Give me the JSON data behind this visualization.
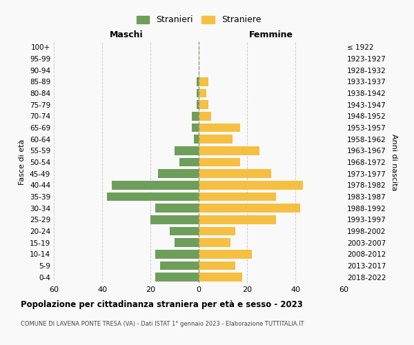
{
  "age_groups": [
    "0-4",
    "5-9",
    "10-14",
    "15-19",
    "20-24",
    "25-29",
    "30-34",
    "35-39",
    "40-44",
    "45-49",
    "50-54",
    "55-59",
    "60-64",
    "65-69",
    "70-74",
    "75-79",
    "80-84",
    "85-89",
    "90-94",
    "95-99",
    "100+"
  ],
  "birth_years": [
    "2018-2022",
    "2013-2017",
    "2008-2012",
    "2003-2007",
    "1998-2002",
    "1993-1997",
    "1988-1992",
    "1983-1987",
    "1978-1982",
    "1973-1977",
    "1968-1972",
    "1963-1967",
    "1958-1962",
    "1953-1957",
    "1948-1952",
    "1943-1947",
    "1938-1942",
    "1933-1937",
    "1928-1932",
    "1923-1927",
    "≤ 1922"
  ],
  "males": [
    18,
    16,
    18,
    10,
    12,
    20,
    18,
    38,
    36,
    17,
    8,
    10,
    2,
    3,
    3,
    1,
    1,
    1,
    0,
    0,
    0
  ],
  "females": [
    18,
    15,
    22,
    13,
    15,
    32,
    42,
    32,
    43,
    30,
    17,
    25,
    14,
    17,
    5,
    4,
    3,
    4,
    0,
    0,
    0
  ],
  "male_color": "#6d9e5a",
  "female_color": "#f5bf42",
  "title": "Popolazione per cittadinanza straniera per età e sesso - 2023",
  "subtitle": "COMUNE DI LAVENA PONTE TRESA (VA) - Dati ISTAT 1° gennaio 2023 - Elaborazione TUTTITALIA.IT",
  "xlabel_left": "Maschi",
  "xlabel_right": "Femmine",
  "ylabel_left": "Fasce di età",
  "ylabel_right": "Anni di nascita",
  "legend_males": "Stranieri",
  "legend_females": "Straniere",
  "xlim": 60,
  "background_color": "#f9f9f9",
  "grid_color": "#cccccc",
  "center_line_color": "#999966",
  "bar_height": 0.75
}
